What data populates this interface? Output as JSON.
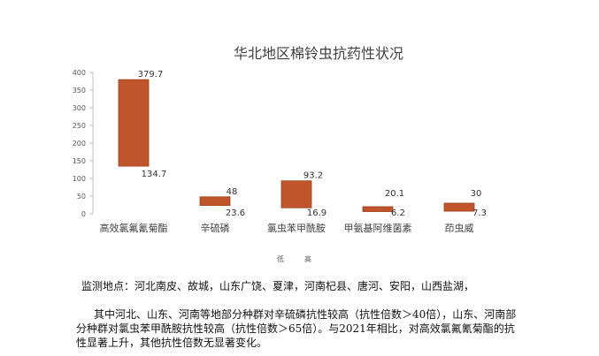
{
  "chart_data": {
    "type": "bar",
    "subtype": "floating-range",
    "title": "华北地区棉铃虫抗药性状况",
    "categories": [
      "高效氯氟氰菊酯",
      "辛硫磷",
      "氯虫苯甲酰胺",
      "甲氨基阿维菌素",
      "茚虫威"
    ],
    "series": [
      {
        "name": "低",
        "values": [
          134.7,
          23.6,
          16.9,
          6.2,
          7.3
        ]
      },
      {
        "name": "高",
        "values": [
          379.7,
          48,
          93.2,
          20.1,
          30
        ]
      }
    ],
    "low_labels": [
      "134.7",
      "23.6",
      "16.9",
      "6.2",
      "7.3"
    ],
    "high_labels": [
      "379.7",
      "48",
      "93.2",
      "20.1",
      "30"
    ],
    "ylim": [
      0,
      400
    ],
    "yticks": [
      0,
      50,
      100,
      150,
      200,
      250,
      300,
      350,
      400
    ],
    "grid": false,
    "legend_position": "bottom",
    "colors": {
      "bar": "#C0552B",
      "bar_edge": "#9E3F1C",
      "axis": "#BFBFBF",
      "text": "#595959"
    }
  },
  "text": {
    "locations": "监测地点：河北南皮、故城，山东广饶、夏津，河南杞县、唐河、安阳，山西盐湖，",
    "summary": "其中河北、山东、河南等地部分种群对辛硫磷抗性较高（抗性倍数＞40倍），山东、河南部分种群对氯虫苯甲酰胺抗性较高（抗性倍数＞65倍）。与2021年相比，对高效氯氟氰菊酯的抗性显著上升，其他抗性倍数无显著变化。"
  }
}
